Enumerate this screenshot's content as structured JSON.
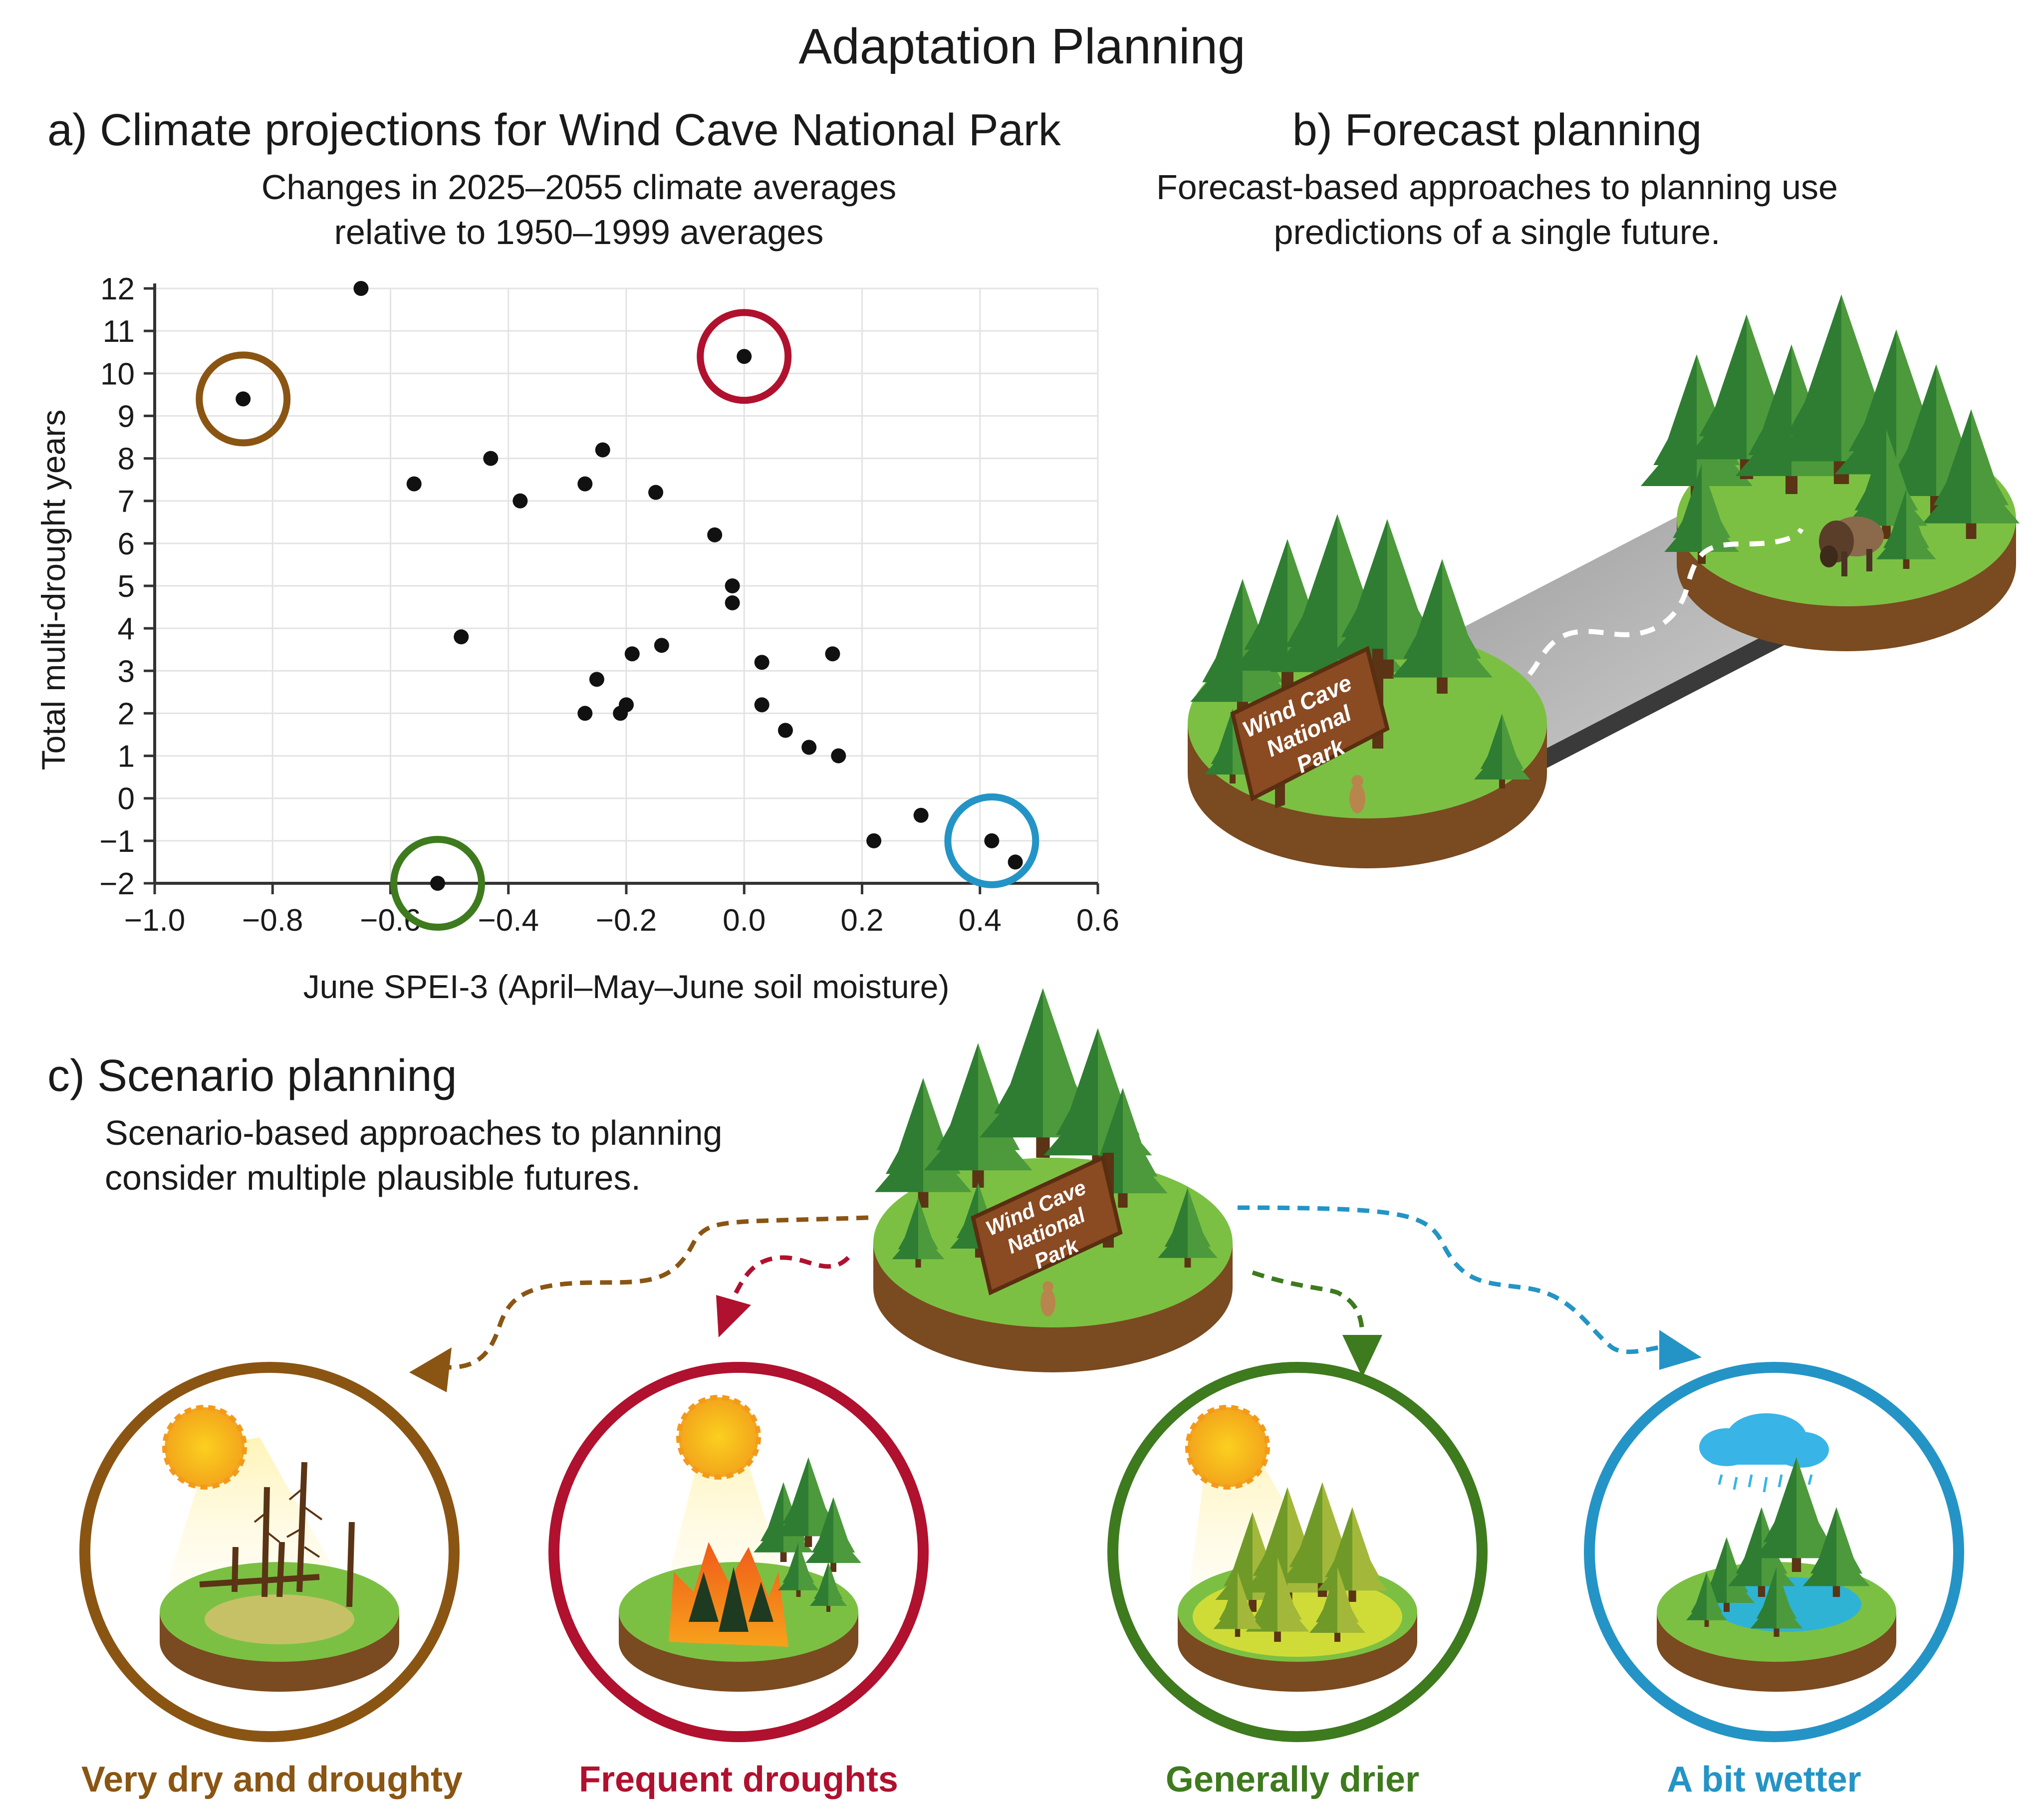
{
  "title": "Adaptation Planning",
  "panel_a": {
    "title": "a) Climate projections for Wind Cave National Park",
    "subtitle_line1": "Changes in 2025–2055 climate averages",
    "subtitle_line2": "relative to 1950–1999 averages"
  },
  "panel_b": {
    "title": "b) Forecast planning",
    "subtitle_line1": "Forecast-based approaches to planning use",
    "subtitle_line2": "predictions of a single future.",
    "sign_text": [
      "Wind Cave",
      "National",
      "Park"
    ]
  },
  "panel_c": {
    "title": "c) Scenario planning",
    "subtitle_line1": "Scenario-based approaches to planning",
    "subtitle_line2": "consider multiple plausible futures.",
    "sign_text": [
      "Wind Cave",
      "National",
      "Park"
    ],
    "scenarios": [
      {
        "label": "Very dry and droughty",
        "color": "#8a5513",
        "icon": "sun-dead-forest-icon"
      },
      {
        "label": "Frequent droughts",
        "color": "#b0112e",
        "icon": "sun-wildfire-icon"
      },
      {
        "label": "Generally drier",
        "color": "#3e7a1e",
        "icon": "sun-dry-forest-icon"
      },
      {
        "label": "A bit wetter",
        "color": "#2494c6",
        "icon": "rain-cloud-pond-icon"
      }
    ]
  },
  "chart_data": {
    "type": "scatter",
    "xlabel": "June SPEI-3 (April–May–June soil moisture)",
    "ylabel": "Total multi-drought years",
    "xlim": [
      -1.0,
      0.6
    ],
    "ylim": [
      -2,
      12
    ],
    "xticks": [
      -1.0,
      -0.8,
      -0.6,
      -0.4,
      -0.2,
      0.0,
      0.2,
      0.4,
      0.6
    ],
    "xtick_labels": [
      "−1.0",
      "−0.8",
      "−0.6",
      "−0.4",
      "−0.2",
      "0.0",
      "0.2",
      "0.4",
      "0.6"
    ],
    "yticks": [
      -2,
      -1,
      0,
      1,
      2,
      3,
      4,
      5,
      6,
      7,
      8,
      9,
      10,
      11,
      12
    ],
    "ytick_labels": [
      "−2",
      "−1",
      "0",
      "1",
      "2",
      "3",
      "4",
      "5",
      "6",
      "7",
      "8",
      "9",
      "10",
      "11",
      "12"
    ],
    "grid": true,
    "points": [
      {
        "x": -0.65,
        "y": 12
      },
      {
        "x": -0.85,
        "y": 9.4
      },
      {
        "x": 0.0,
        "y": 10.4
      },
      {
        "x": -0.56,
        "y": 7.4
      },
      {
        "x": -0.43,
        "y": 8
      },
      {
        "x": -0.38,
        "y": 7
      },
      {
        "x": -0.27,
        "y": 7.4
      },
      {
        "x": -0.24,
        "y": 8.2
      },
      {
        "x": -0.15,
        "y": 7.2
      },
      {
        "x": -0.05,
        "y": 6.2
      },
      {
        "x": -0.02,
        "y": 5
      },
      {
        "x": -0.02,
        "y": 4.6
      },
      {
        "x": -0.48,
        "y": 3.8
      },
      {
        "x": -0.14,
        "y": 3.6
      },
      {
        "x": -0.19,
        "y": 3.4
      },
      {
        "x": 0.03,
        "y": 3.2
      },
      {
        "x": 0.15,
        "y": 3.4
      },
      {
        "x": -0.25,
        "y": 2.8
      },
      {
        "x": 0.03,
        "y": 2.2
      },
      {
        "x": -0.2,
        "y": 2.2
      },
      {
        "x": -0.27,
        "y": 2
      },
      {
        "x": -0.21,
        "y": 2
      },
      {
        "x": 0.07,
        "y": 1.6
      },
      {
        "x": 0.11,
        "y": 1.2
      },
      {
        "x": 0.16,
        "y": 1
      },
      {
        "x": 0.3,
        "y": -0.4
      },
      {
        "x": 0.22,
        "y": -1
      },
      {
        "x": 0.42,
        "y": -1
      },
      {
        "x": 0.46,
        "y": -1.5
      },
      {
        "x": -0.52,
        "y": -2
      }
    ],
    "highlighted": [
      {
        "x": -0.85,
        "y": 9.4,
        "color": "#8a5513",
        "scenario": "Very dry and droughty"
      },
      {
        "x": 0.0,
        "y": 10.4,
        "color": "#b0112e",
        "scenario": "Frequent droughts"
      },
      {
        "x": -0.52,
        "y": -2,
        "color": "#3e7a1e",
        "scenario": "Generally drier"
      },
      {
        "x": 0.42,
        "y": -1,
        "color": "#2494c6",
        "scenario": "A bit wetter"
      }
    ]
  }
}
